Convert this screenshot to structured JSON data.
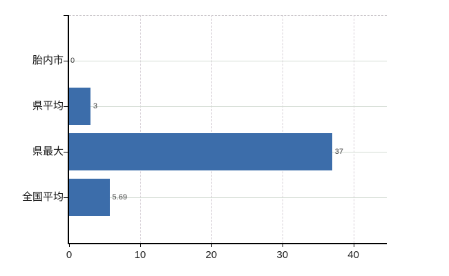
{
  "chart": {
    "background": "#ffffff",
    "bar_color": "#3c6daa",
    "axis_color": "#000000",
    "hgrid_color": "#d3dcd3",
    "vgrid_color": "#d6cfd6",
    "top_border_color": "#c9c5c9",
    "tick_label_color": "#222222",
    "category_label_color": "#111111",
    "data_label_color": "#3f3f3f"
  },
  "chart_data": {
    "type": "bar",
    "orientation": "horizontal",
    "title": "",
    "xlabel": "",
    "ylabel": "",
    "categories": [
      "胎内市",
      "県平均",
      "県最大",
      "全国平均"
    ],
    "values": [
      0,
      3,
      37,
      5.69
    ],
    "value_labels": [
      "0",
      "3",
      "37",
      "5.69"
    ],
    "x_ticks": [
      0,
      10,
      20,
      30,
      40
    ],
    "x_tick_labels": [
      "0",
      "10",
      "20",
      "30",
      "40"
    ],
    "xlim": [
      0,
      44.7
    ],
    "grid": true,
    "legend": "none"
  }
}
